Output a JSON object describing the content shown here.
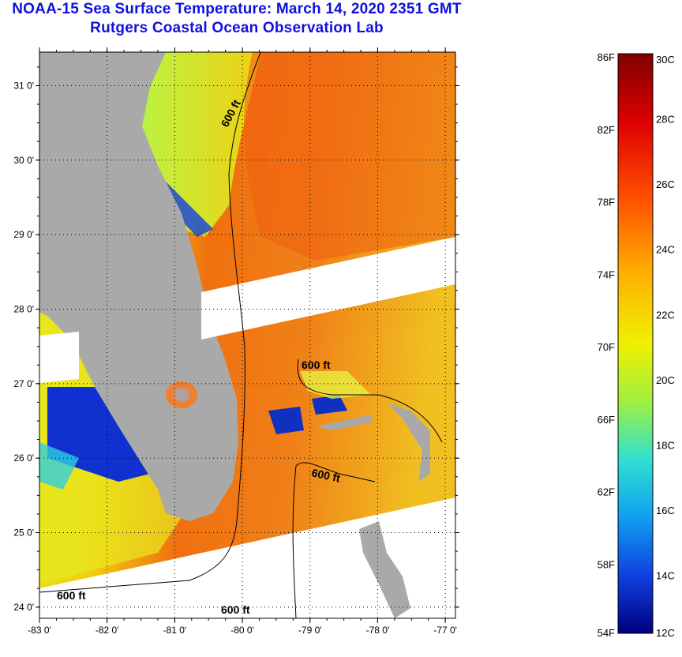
{
  "title": {
    "line1": "NOAA-15 Sea Surface Temperature:  March 14, 2020 2351 GMT",
    "line2": "Rutgers Coastal Ocean Observation Lab"
  },
  "colors": {
    "title": "#1010e0",
    "land": "#a9a9a9",
    "no_data": "#ffffff"
  },
  "map": {
    "lon_range": [
      -83,
      -76.85
    ],
    "lat_range": [
      23.85,
      31.45
    ],
    "lat_labels": [
      "31 0'",
      "30 0'",
      "29 0'",
      "28 0'",
      "27 0'",
      "26 0'",
      "25 0'",
      "24 0'"
    ],
    "lon_labels": [
      "-83 0'",
      "-82 0'",
      "-81 0'",
      "-80 0'",
      "-79 0'",
      "-78 0'",
      "-77 0'"
    ],
    "isobath_labels": [
      "600 ft",
      "600 ft",
      "600 ft",
      "600 ft",
      "600 ft"
    ]
  },
  "colorbar": {
    "f_labels": [
      "86F",
      "82F",
      "78F",
      "74F",
      "70F",
      "66F",
      "62F",
      "58F",
      "54F"
    ],
    "c_labels": [
      "30C",
      "28C",
      "26C",
      "24C",
      "22C",
      "20C",
      "18C",
      "16C",
      "14C",
      "12C"
    ]
  }
}
